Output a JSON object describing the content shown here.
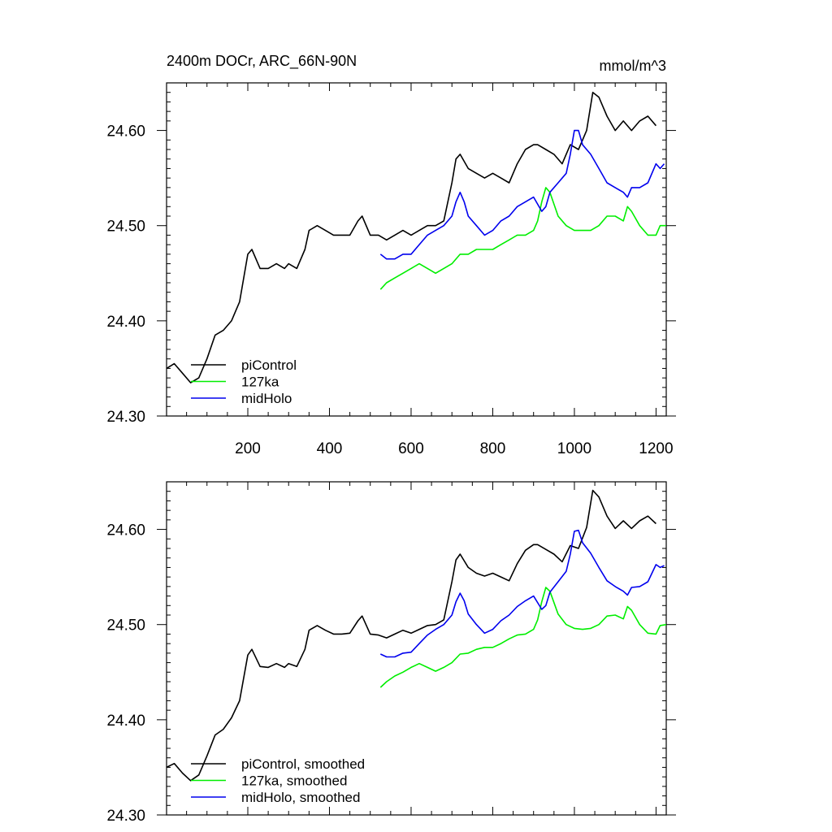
{
  "chart_data": [
    {
      "type": "line",
      "title": "2400m DOCr, ARC_66N-90N",
      "units": "mmol/m^3",
      "xlim": [
        1,
        1225
      ],
      "ylim": [
        24.3,
        24.65
      ],
      "x_ticks": [
        200,
        400,
        600,
        800,
        1000,
        1200
      ],
      "x_tick_labels": [
        "200",
        "400",
        "600",
        "800",
        "1000",
        "1200"
      ],
      "y_ticks": [
        24.3,
        24.4,
        24.5,
        24.6
      ],
      "y_tick_labels": [
        "24.30",
        "24.40",
        "24.50",
        "24.60"
      ],
      "legend_position": "bottom-left",
      "series": [
        {
          "name": "piControl",
          "color": "#000000",
          "x": [
            1,
            20,
            40,
            60,
            80,
            100,
            120,
            140,
            160,
            180,
            200,
            210,
            230,
            250,
            270,
            290,
            300,
            320,
            340,
            350,
            370,
            390,
            410,
            430,
            450,
            470,
            480,
            500,
            520,
            540,
            560,
            580,
            600,
            620,
            640,
            660,
            680,
            700,
            710,
            720,
            740,
            760,
            780,
            800,
            820,
            840,
            860,
            880,
            900,
            910,
            930,
            950,
            970,
            990,
            1010,
            1030,
            1045,
            1060,
            1080,
            1100,
            1120,
            1140,
            1160,
            1180,
            1200
          ],
          "y": [
            24.35,
            24.355,
            24.345,
            24.335,
            24.34,
            24.36,
            24.385,
            24.39,
            24.4,
            24.42,
            24.47,
            24.475,
            24.455,
            24.455,
            24.46,
            24.455,
            24.46,
            24.455,
            24.475,
            24.495,
            24.5,
            24.495,
            24.49,
            24.49,
            24.49,
            24.505,
            24.51,
            24.49,
            24.49,
            24.485,
            24.49,
            24.495,
            24.49,
            24.495,
            24.5,
            24.5,
            24.505,
            24.545,
            24.57,
            24.575,
            24.56,
            24.555,
            24.55,
            24.555,
            24.55,
            24.545,
            24.565,
            24.58,
            24.585,
            24.585,
            24.58,
            24.575,
            24.565,
            24.585,
            24.58,
            24.6,
            24.64,
            24.635,
            24.615,
            24.6,
            24.61,
            24.6,
            24.61,
            24.615,
            24.605
          ]
        },
        {
          "name": "127ka",
          "color": "#00ee00",
          "x": [
            525,
            540,
            560,
            580,
            600,
            620,
            640,
            660,
            680,
            700,
            720,
            740,
            760,
            780,
            800,
            820,
            840,
            860,
            880,
            900,
            910,
            920,
            930,
            940,
            960,
            980,
            1000,
            1020,
            1040,
            1060,
            1080,
            1100,
            1120,
            1130,
            1140,
            1160,
            1180,
            1200,
            1210,
            1225
          ],
          "y": [
            24.433,
            24.44,
            24.445,
            24.45,
            24.455,
            24.46,
            24.455,
            24.45,
            24.455,
            24.46,
            24.47,
            24.47,
            24.475,
            24.475,
            24.475,
            24.48,
            24.485,
            24.49,
            24.49,
            24.495,
            24.505,
            24.525,
            24.54,
            24.535,
            24.51,
            24.5,
            24.495,
            24.495,
            24.495,
            24.5,
            24.51,
            24.51,
            24.505,
            24.52,
            24.515,
            24.5,
            24.49,
            24.49,
            24.5,
            24.5
          ]
        },
        {
          "name": "midHolo",
          "color": "#0000ee",
          "x": [
            525,
            540,
            560,
            580,
            600,
            620,
            640,
            660,
            680,
            700,
            710,
            720,
            730,
            740,
            760,
            780,
            800,
            820,
            840,
            860,
            880,
            900,
            920,
            930,
            940,
            960,
            980,
            990,
            1000,
            1010,
            1020,
            1040,
            1060,
            1080,
            1100,
            1120,
            1130,
            1140,
            1160,
            1180,
            1200,
            1210,
            1220
          ],
          "y": [
            24.47,
            24.465,
            24.465,
            24.47,
            24.47,
            24.48,
            24.49,
            24.495,
            24.5,
            24.51,
            24.525,
            24.535,
            24.525,
            24.51,
            24.5,
            24.49,
            24.495,
            24.505,
            24.51,
            24.52,
            24.525,
            24.53,
            24.515,
            24.52,
            24.535,
            24.545,
            24.555,
            24.575,
            24.6,
            24.6,
            24.585,
            24.575,
            24.56,
            24.545,
            24.54,
            24.535,
            24.53,
            24.54,
            24.54,
            24.545,
            24.565,
            24.56,
            24.565
          ]
        }
      ]
    },
    {
      "type": "line",
      "title": "",
      "units": "",
      "xlim": [
        1,
        1225
      ],
      "ylim": [
        24.3,
        24.65
      ],
      "x_ticks": [
        200,
        400,
        600,
        800,
        1000,
        1200
      ],
      "x_tick_labels": [],
      "y_ticks": [
        24.3,
        24.4,
        24.5,
        24.6
      ],
      "y_tick_labels": [
        "24.30",
        "24.40",
        "24.50",
        "24.60"
      ],
      "legend_position": "bottom-left",
      "series": [
        {
          "name": "piControl, smoothed",
          "color": "#000000",
          "x": [
            1,
            20,
            40,
            60,
            80,
            100,
            120,
            140,
            160,
            180,
            200,
            210,
            230,
            250,
            270,
            290,
            300,
            320,
            340,
            350,
            370,
            390,
            410,
            430,
            450,
            470,
            480,
            500,
            520,
            540,
            560,
            580,
            600,
            620,
            640,
            660,
            680,
            700,
            710,
            720,
            740,
            760,
            780,
            800,
            820,
            840,
            860,
            880,
            900,
            910,
            930,
            950,
            970,
            990,
            1010,
            1030,
            1045,
            1060,
            1080,
            1100,
            1120,
            1140,
            1160,
            1180,
            1200
          ],
          "y": [
            24.35,
            24.354,
            24.344,
            24.336,
            24.342,
            24.362,
            24.384,
            24.39,
            24.402,
            24.42,
            24.468,
            24.474,
            24.456,
            24.455,
            24.459,
            24.455,
            24.459,
            24.456,
            24.474,
            24.494,
            24.499,
            24.494,
            24.49,
            24.49,
            24.491,
            24.504,
            24.509,
            24.49,
            24.489,
            24.486,
            24.49,
            24.494,
            24.491,
            24.495,
            24.499,
            24.5,
            24.505,
            24.545,
            24.568,
            24.574,
            24.56,
            24.554,
            24.551,
            24.554,
            24.55,
            24.546,
            24.564,
            24.578,
            24.584,
            24.584,
            24.579,
            24.574,
            24.566,
            24.583,
            24.58,
            24.602,
            24.641,
            24.634,
            24.614,
            24.601,
            24.609,
            24.601,
            24.609,
            24.614,
            24.606
          ]
        },
        {
          "name": "127ka, smoothed",
          "color": "#00ee00",
          "x": [
            525,
            540,
            560,
            580,
            600,
            620,
            640,
            660,
            680,
            700,
            720,
            740,
            760,
            780,
            800,
            820,
            840,
            860,
            880,
            900,
            910,
            920,
            930,
            940,
            960,
            980,
            1000,
            1020,
            1040,
            1060,
            1080,
            1100,
            1120,
            1130,
            1140,
            1160,
            1180,
            1200,
            1210,
            1225
          ],
          "y": [
            24.434,
            24.44,
            24.446,
            24.45,
            24.455,
            24.459,
            24.455,
            24.451,
            24.455,
            24.46,
            24.469,
            24.47,
            24.474,
            24.476,
            24.476,
            24.48,
            24.485,
            24.489,
            24.49,
            24.495,
            24.505,
            24.524,
            24.539,
            24.535,
            24.511,
            24.5,
            24.496,
            24.495,
            24.496,
            24.5,
            24.509,
            24.51,
            24.506,
            24.519,
            24.515,
            24.5,
            24.491,
            24.49,
            24.499,
            24.5
          ]
        },
        {
          "name": "midHolo, smoothed",
          "color": "#0000ee",
          "x": [
            525,
            540,
            560,
            580,
            600,
            620,
            640,
            660,
            680,
            700,
            710,
            720,
            730,
            740,
            760,
            780,
            800,
            820,
            840,
            860,
            880,
            900,
            920,
            930,
            940,
            960,
            980,
            990,
            1000,
            1010,
            1020,
            1040,
            1060,
            1080,
            1100,
            1120,
            1130,
            1140,
            1160,
            1180,
            1200,
            1210,
            1220
          ],
          "y": [
            24.469,
            24.466,
            24.466,
            24.47,
            24.471,
            24.48,
            24.489,
            24.495,
            24.5,
            24.51,
            24.524,
            24.533,
            24.525,
            24.511,
            24.5,
            24.491,
            24.495,
            24.504,
            24.51,
            24.519,
            24.525,
            24.53,
            24.516,
            24.52,
            24.534,
            24.545,
            24.556,
            24.574,
            24.598,
            24.599,
            24.586,
            24.575,
            24.56,
            24.546,
            24.54,
            24.535,
            24.531,
            24.539,
            24.54,
            24.545,
            24.563,
            24.56,
            24.562
          ]
        }
      ]
    }
  ]
}
